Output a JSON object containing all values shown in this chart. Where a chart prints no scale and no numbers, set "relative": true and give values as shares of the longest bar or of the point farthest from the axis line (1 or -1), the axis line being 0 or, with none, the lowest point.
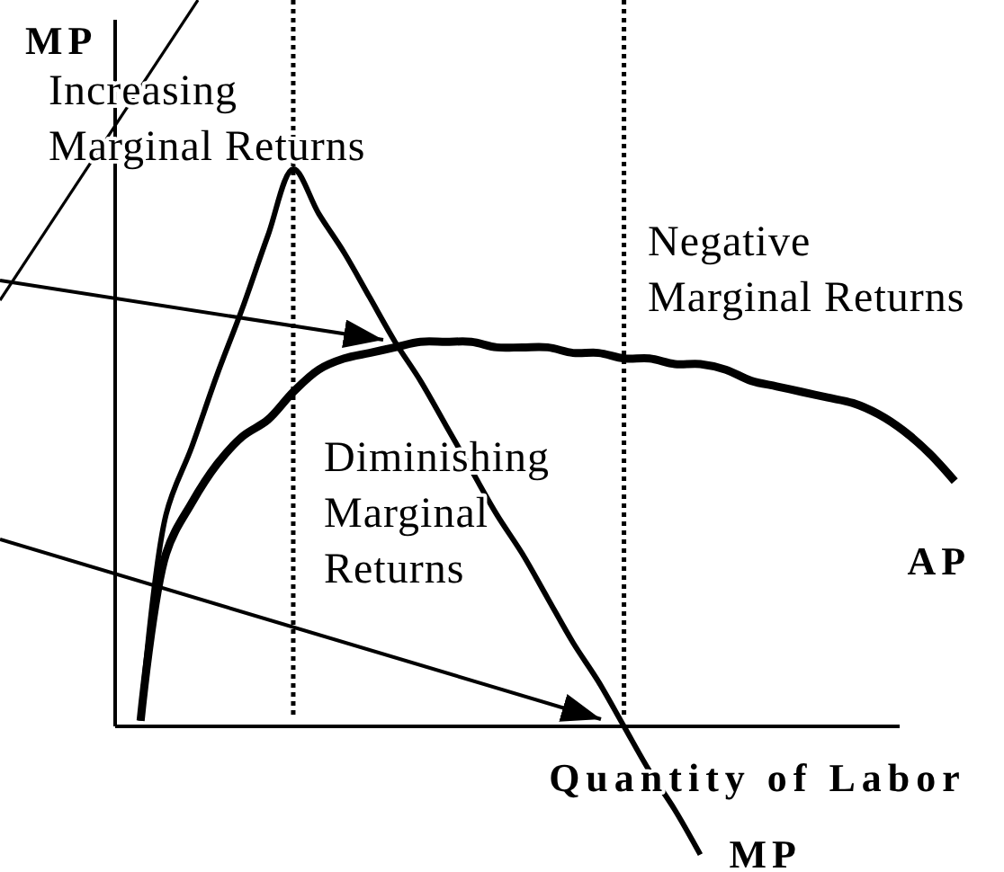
{
  "chart_data": {
    "type": "line",
    "xlabel": "Quantity of Labor",
    "ylabel": "MP",
    "relative": true,
    "categories": [
      null,
      null,
      null,
      null,
      null,
      null,
      null,
      null,
      null,
      null,
      null,
      null,
      null,
      null,
      null,
      null,
      null,
      null,
      null,
      null,
      null,
      null,
      null,
      null,
      null,
      null,
      null,
      null,
      null,
      null,
      null,
      null,
      null,
      null
    ],
    "series": [
      {
        "name": "MP",
        "color": "#000000",
        "values": [
          null,
          0.01,
          0.38,
          0.5,
          0.63,
          0.75,
          0.88,
          1,
          0.92,
          0.85,
          0.77,
          0.69,
          0.62,
          0.54,
          0.46,
          0.38,
          0.31,
          0.23,
          0.15,
          0.08,
          0,
          -0.08,
          -0.15,
          -0.23,
          null,
          null,
          null,
          null,
          null,
          null,
          null,
          null,
          null,
          null
        ]
      },
      {
        "name": "AP",
        "color": "#000000",
        "values": [
          null,
          0.01,
          0.31,
          0.4,
          0.47,
          0.52,
          0.55,
          0.6,
          0.64,
          0.66,
          0.67,
          0.68,
          0.69,
          0.69,
          0.69,
          0.68,
          0.68,
          0.68,
          0.67,
          0.67,
          0.66,
          0.66,
          0.65,
          0.65,
          0.64,
          0.62,
          0.61,
          0.6,
          0.59,
          0.58,
          0.56,
          0.53,
          0.49,
          0.44
        ]
      }
    ],
    "annotations": [
      "Increasing\nMarginal Returns",
      "Diminishing\nMarginal\nReturns",
      "Negative\nMarginal Returns"
    ]
  }
}
